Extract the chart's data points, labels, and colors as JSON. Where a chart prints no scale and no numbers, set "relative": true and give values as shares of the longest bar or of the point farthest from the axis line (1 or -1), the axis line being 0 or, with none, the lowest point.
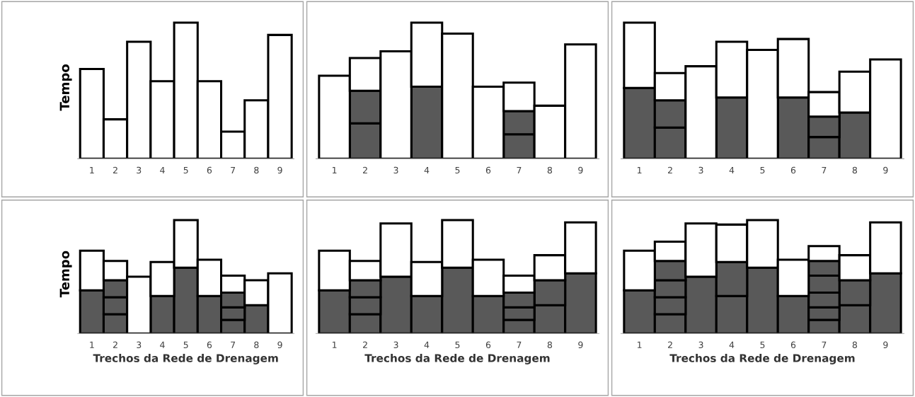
{
  "chart_data": [
    {
      "type": "bar",
      "stacked": true,
      "relative": true,
      "ylabel": "Tempo",
      "categories": [
        "1",
        "2",
        "3",
        "4",
        "5",
        "6",
        "7",
        "8",
        "9"
      ],
      "series": [
        {
          "color": "#ffffff",
          "values": [
            0.66,
            0.29,
            0.86,
            0.57,
            1,
            0.57,
            0.2,
            0.43,
            0.91
          ]
        }
      ]
    },
    {
      "type": "bar",
      "stacked": true,
      "relative": true,
      "categories": [
        "1",
        "2",
        "3",
        "4",
        "5",
        "6",
        "7",
        "8",
        "9"
      ],
      "series": [
        {
          "color": "#595959",
          "values": [
            null,
            0.26,
            null,
            0.53,
            null,
            null,
            0.18,
            null,
            null
          ]
        },
        {
          "color": "#595959",
          "values": [
            null,
            0.24,
            null,
            null,
            null,
            null,
            0.17,
            null,
            null
          ]
        },
        {
          "color": "#ffffff",
          "values": [
            0.61,
            0.24,
            0.79,
            0.47,
            0.92,
            0.53,
            0.21,
            0.39,
            0.84
          ]
        }
      ]
    },
    {
      "type": "bar",
      "stacked": true,
      "relative": true,
      "categories": [
        "1",
        "2",
        "3",
        "4",
        "5",
        "6",
        "7",
        "8",
        "9"
      ],
      "series": [
        {
          "color": "#595959",
          "values": [
            0.52,
            0.23,
            null,
            0.45,
            null,
            0.45,
            0.16,
            0.34,
            null
          ]
        },
        {
          "color": "#595959",
          "values": [
            null,
            0.2,
            null,
            null,
            null,
            null,
            0.15,
            null,
            null
          ]
        },
        {
          "color": "#ffffff",
          "values": [
            0.48,
            0.2,
            0.68,
            0.41,
            0.8,
            0.43,
            0.18,
            0.3,
            0.73
          ]
        }
      ]
    },
    {
      "type": "bar",
      "stacked": true,
      "relative": true,
      "ylabel": "Tempo",
      "xlabel": "Trechos da Rede de Drenagem",
      "categories": [
        "1",
        "2",
        "3",
        "4",
        "5",
        "6",
        "7",
        "8",
        "9"
      ],
      "series": [
        {
          "color": "#595959",
          "values": [
            0.38,
            0.17,
            null,
            0.33,
            0.58,
            0.33,
            0.12,
            0.25,
            null
          ]
        },
        {
          "color": "#595959",
          "values": [
            null,
            0.15,
            null,
            null,
            null,
            null,
            0.11,
            null,
            null
          ]
        },
        {
          "color": "#595959",
          "values": [
            null,
            0.15,
            null,
            null,
            null,
            null,
            0.13,
            null,
            null
          ]
        },
        {
          "color": "#ffffff",
          "values": [
            0.35,
            0.17,
            0.5,
            0.3,
            0.42,
            0.32,
            0.15,
            0.22,
            0.53
          ]
        }
      ]
    },
    {
      "type": "bar",
      "stacked": true,
      "relative": true,
      "xlabel": "Trechos da Rede de Drenagem",
      "categories": [
        "1",
        "2",
        "3",
        "4",
        "5",
        "6",
        "7",
        "8",
        "9"
      ],
      "series": [
        {
          "color": "#595959",
          "values": [
            0.38,
            0.17,
            0.5,
            0.33,
            0.58,
            0.33,
            0.12,
            0.25,
            0.53
          ]
        },
        {
          "color": "#595959",
          "values": [
            null,
            0.15,
            null,
            null,
            null,
            null,
            0.11,
            0.22,
            null
          ]
        },
        {
          "color": "#595959",
          "values": [
            null,
            0.15,
            null,
            null,
            null,
            null,
            0.13,
            null,
            null
          ]
        },
        {
          "color": "#ffffff",
          "values": [
            0.35,
            0.17,
            0.47,
            0.3,
            0.42,
            0.32,
            0.15,
            0.22,
            0.45
          ]
        }
      ]
    },
    {
      "type": "bar",
      "stacked": true,
      "relative": true,
      "xlabel": "Trechos da Rede de Drenagem",
      "categories": [
        "1",
        "2",
        "3",
        "4",
        "5",
        "6",
        "7",
        "8",
        "9"
      ],
      "series": [
        {
          "color": "#595959",
          "values": [
            0.38,
            0.17,
            0.5,
            0.33,
            0.58,
            0.33,
            0.12,
            0.25,
            0.53
          ]
        },
        {
          "color": "#595959",
          "values": [
            null,
            0.15,
            null,
            0.3,
            null,
            null,
            0.11,
            0.22,
            null
          ]
        },
        {
          "color": "#595959",
          "values": [
            null,
            0.15,
            null,
            null,
            null,
            null,
            0.13,
            null,
            null
          ]
        },
        {
          "color": "#595959",
          "values": [
            null,
            0.17,
            null,
            null,
            null,
            null,
            0.15,
            null,
            null
          ]
        },
        {
          "color": "#595959",
          "values": [
            null,
            null,
            null,
            null,
            null,
            null,
            0.13,
            null,
            null
          ]
        },
        {
          "color": "#ffffff",
          "values": [
            0.35,
            0.17,
            0.47,
            0.33,
            0.42,
            0.32,
            0.13,
            0.22,
            0.45
          ]
        }
      ]
    }
  ]
}
